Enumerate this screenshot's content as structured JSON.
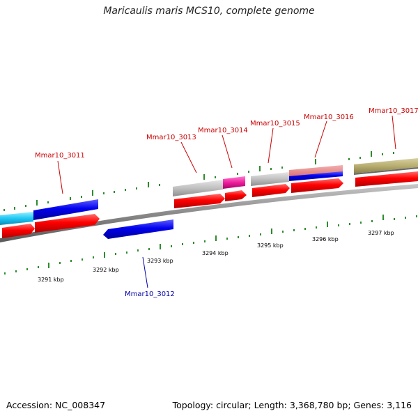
{
  "title": "Maricaulis maris MCS10, complete genome",
  "footer": {
    "accession": "Accession: NC_008347",
    "summary": "Topology: circular; Length: 3,368,780 bp; Genes: 3,116"
  },
  "colors": {
    "forward_gene": "#ff0000",
    "reverse_gene": "#0000ee",
    "label_forward": "#cc0000",
    "label_reverse": "#0000aa",
    "tick": "#2e8b2e",
    "backbone": "#777777"
  },
  "ruler_labels": [
    "3291 kbp",
    "3292 kbp",
    "3293 kbp",
    "3294 kbp",
    "3295 kbp",
    "3296 kbp",
    "3297 kbp"
  ],
  "gene_labels": [
    "Mmar10_3011",
    "Mmar10_3012",
    "Mmar10_3013",
    "Mmar10_3014",
    "Mmar10_3015",
    "Mmar10_3016",
    "Mmar10_3017"
  ]
}
